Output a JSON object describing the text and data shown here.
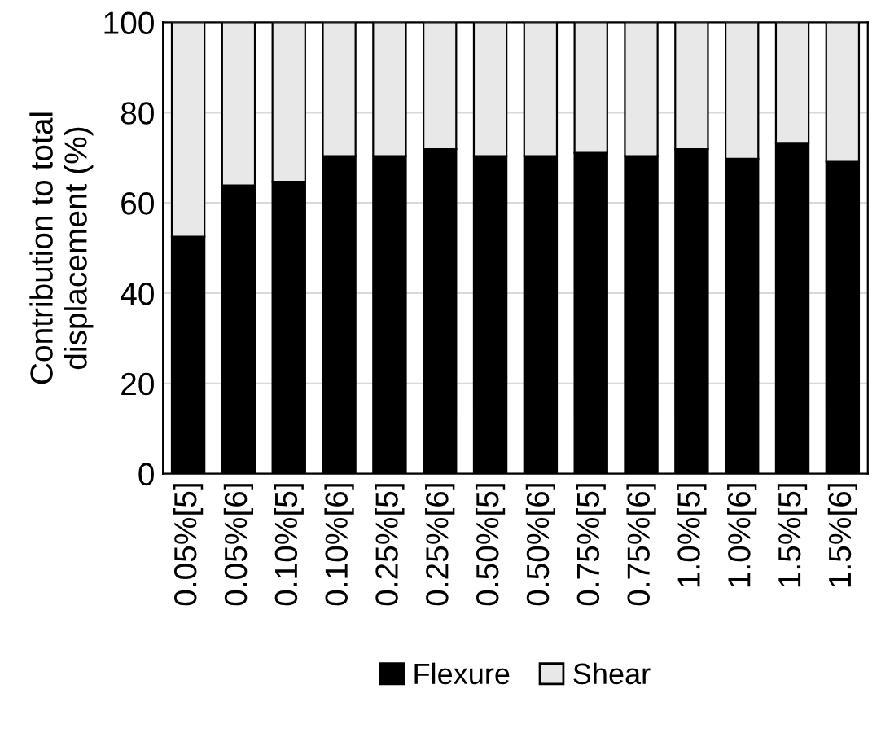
{
  "chart_data": {
    "type": "bar",
    "stacked": true,
    "ylabel": "Contribution to total\ndisplacement (%)",
    "categories": [
      "0.05%[5]",
      "0.05%[6]",
      "0.10%[5]",
      "0.10%[6]",
      "0.25%[5]",
      "0.25%[6]",
      "0.50%[5]",
      "0.50%[6]",
      "0.75%[5]",
      "0.75%[6]",
      "1.0%[5]",
      "1.0%[6]",
      "1.5%[5]",
      "1.5%[6]"
    ],
    "series": [
      {
        "name": "Flexure",
        "color": "#000000",
        "values": [
          52.5,
          63.9,
          64.7,
          70.4,
          70.4,
          71.9,
          70.4,
          70.4,
          71.1,
          70.4,
          71.9,
          69.8,
          73.3,
          69.1
        ]
      },
      {
        "name": "Shear",
        "color": "#e8e8e8",
        "values": [
          47.5,
          36.1,
          35.3,
          29.6,
          29.6,
          28.1,
          29.6,
          29.6,
          28.9,
          29.6,
          28.1,
          30.2,
          26.7,
          30.9
        ]
      }
    ],
    "ylim": [
      0,
      100
    ],
    "yticks": [
      0,
      20,
      40,
      60,
      80,
      100
    ],
    "grid": "y",
    "legend": "bottom"
  }
}
